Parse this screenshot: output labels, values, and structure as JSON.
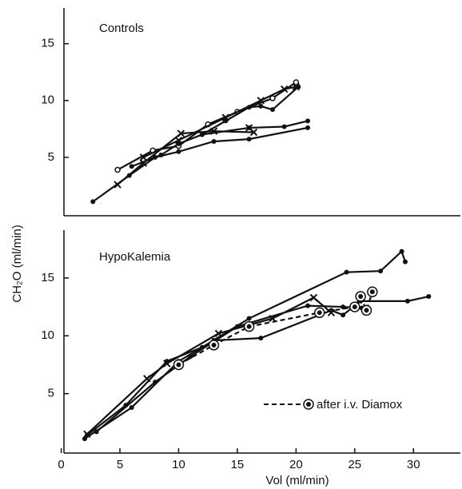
{
  "chart_data": [
    {
      "type": "line",
      "title": "Controls",
      "ylim": [
        0,
        18
      ],
      "yticks": [
        5,
        10,
        15
      ],
      "xlim": [
        0,
        34
      ],
      "series": [
        {
          "color": "#111",
          "marker": "dot",
          "x": [
            2.7,
            5.8,
            8,
            10,
            13,
            16,
            21
          ],
          "values": [
            1.1,
            3.4,
            5,
            5.5,
            6.4,
            6.6,
            7.6
          ]
        },
        {
          "color": "#111",
          "marker": "x",
          "x": [
            4.8,
            7,
            10.2,
            13,
            16.4,
            16
          ],
          "values": [
            2.6,
            4.5,
            7.1,
            7.3,
            7.2,
            7.6
          ]
        },
        {
          "color": "#111",
          "marker": "circle",
          "x": [
            4.8,
            7.8,
            10,
            12.5,
            15,
            18,
            20
          ],
          "values": [
            3.9,
            5.6,
            6,
            7.9,
            9,
            10.2,
            11.6
          ]
        },
        {
          "color": "#111",
          "marker": "dot",
          "x": [
            6,
            8.5,
            10,
            12,
            14,
            16,
            17,
            18,
            20.2
          ],
          "values": [
            4.2,
            5.2,
            6.2,
            7,
            8.2,
            9.4,
            9.5,
            9.2,
            11.2
          ]
        },
        {
          "color": "#111",
          "marker": "x",
          "x": [
            7,
            10,
            14,
            17,
            19,
            20
          ],
          "values": [
            5,
            6.5,
            8.5,
            10,
            11,
            11.2
          ]
        },
        {
          "color": "#111",
          "marker": "dot",
          "x": [
            12,
            16,
            19,
            21
          ],
          "values": [
            7,
            7.6,
            7.7,
            8.2
          ]
        }
      ]
    },
    {
      "type": "line",
      "title": "HypoKalemia",
      "ylim": [
        0,
        19
      ],
      "yticks": [
        5,
        10,
        15
      ],
      "xlim": [
        0,
        34
      ],
      "xticks": [
        0,
        5,
        10,
        15,
        20,
        25,
        30
      ],
      "xlabel": "Vol (ml/min)",
      "ylabel": "CH₂O (ml/min)",
      "annotation": "after i.v. Diamox",
      "series": [
        {
          "color": "#111",
          "marker": "dot",
          "x": [
            2.2,
            5.5,
            9,
            12,
            16,
            24.3,
            27.2,
            29,
            29.3
          ],
          "values": [
            1.4,
            4,
            7.8,
            9,
            11.5,
            15.5,
            15.6,
            17.3,
            16.4
          ]
        },
        {
          "color": "#111",
          "marker": "x",
          "x": [
            2.2,
            7.3,
            9,
            13.4,
            18,
            21.5,
            23
          ],
          "values": [
            1.5,
            6.3,
            7.6,
            10.2,
            11.5,
            13.3,
            12
          ]
        },
        {
          "color": "#111",
          "marker": "dot",
          "x": [
            2,
            6,
            10,
            13,
            17,
            23,
            24,
            25.5,
            29.5,
            31.3
          ],
          "values": [
            1.1,
            3.8,
            7.8,
            9.6,
            9.8,
            12.2,
            11.8,
            13,
            13,
            13.4
          ]
        },
        {
          "color": "#111",
          "marker": "dot",
          "x": [
            3,
            8,
            11,
            15,
            21,
            24,
            25.6
          ],
          "values": [
            1.7,
            6,
            8.2,
            10.8,
            12.6,
            12.5,
            12.4
          ]
        },
        {
          "color": "#111",
          "marker": "bullseye",
          "dash": true,
          "x": [
            10,
            13,
            16,
            22,
            25,
            25.5,
            26,
            26.5
          ],
          "values": [
            7.5,
            9.2,
            10.8,
            12,
            12.5,
            13.4,
            12.2,
            13.8
          ]
        }
      ]
    }
  ]
}
